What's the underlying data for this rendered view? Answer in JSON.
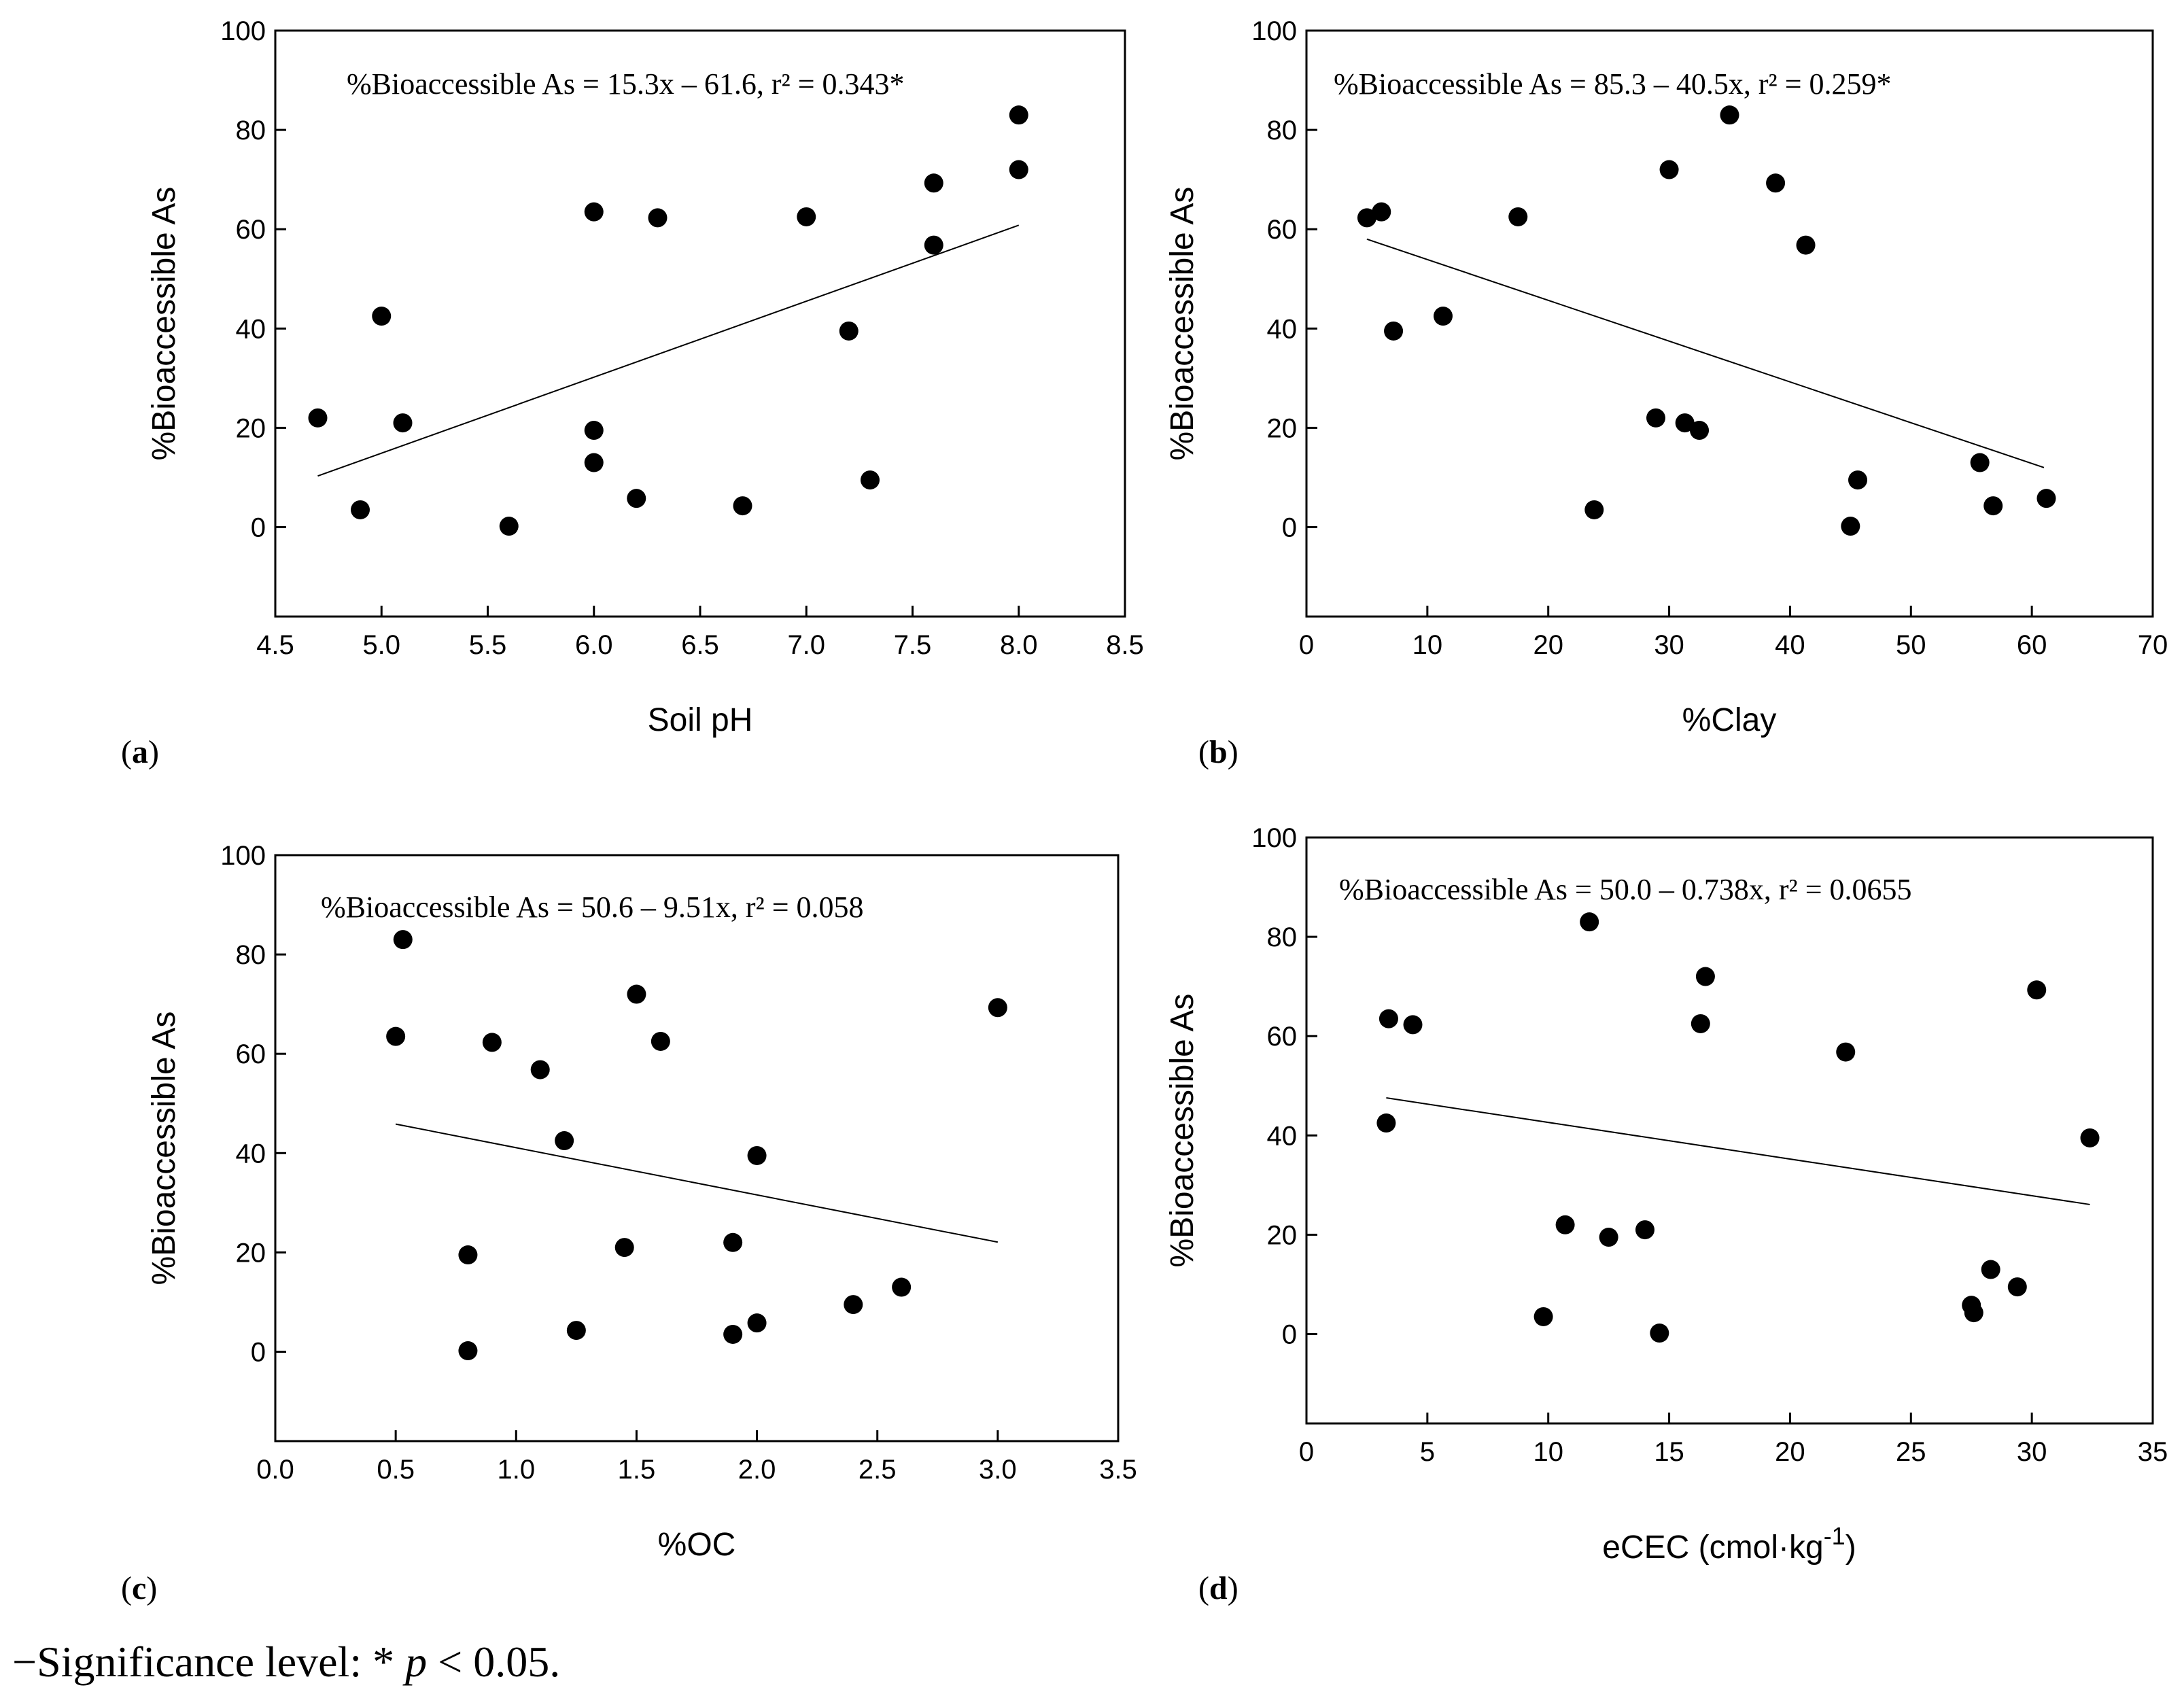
{
  "figure_note": {
    "prefix": "−Significance level: * ",
    "p_symbol": "p",
    "suffix": " < 0.05."
  },
  "chart_data": [
    {
      "type": "scatter",
      "id": "a",
      "panel_label": "(a)",
      "panel_letter": "a",
      "xlabel": "Soil pH",
      "ylabel": "%Bioaccessible As",
      "equation": "%Bioaccessible As = 15.3x – 61.6, r² = 0.343*",
      "xlim": [
        4.5,
        8.5
      ],
      "ylim": [
        -18,
        100
      ],
      "xticks": [
        4.5,
        5.0,
        5.5,
        6.0,
        6.5,
        7.0,
        7.5,
        8.0,
        8.5
      ],
      "xtick_labels": [
        "4.5",
        "5.0",
        "5.5",
        "6.0",
        "6.5",
        "7.0",
        "7.5",
        "8.0",
        "8.5"
      ],
      "yticks": [
        0,
        20,
        40,
        60,
        80,
        100
      ],
      "ytick_labels": [
        "0",
        "20",
        "40",
        "60",
        "80",
        "100"
      ],
      "fit_line": {
        "slope": 15.3,
        "intercept": -61.6,
        "x_range": [
          4.7,
          8.0
        ]
      },
      "points": [
        [
          4.7,
          22
        ],
        [
          4.9,
          3.5
        ],
        [
          5.0,
          42.5
        ],
        [
          5.1,
          21
        ],
        [
          5.6,
          0.2
        ],
        [
          6.0,
          63.5
        ],
        [
          6.0,
          19.5
        ],
        [
          6.0,
          13
        ],
        [
          6.2,
          5.8
        ],
        [
          6.3,
          62.3
        ],
        [
          6.7,
          4.3
        ],
        [
          7.0,
          62.5
        ],
        [
          7.2,
          39.5
        ],
        [
          7.3,
          9.5
        ],
        [
          7.6,
          69.3
        ],
        [
          7.6,
          56.8
        ],
        [
          8.0,
          83
        ],
        [
          8.0,
          72
        ]
      ]
    },
    {
      "type": "scatter",
      "id": "b",
      "panel_label": "(b)",
      "panel_letter": "b",
      "xlabel": "%Clay",
      "ylabel": "%Bioaccessible As",
      "equation": "%Bioaccessible As = 85.3 – 40.5x, r² = 0.259*",
      "xlim": [
        0,
        70
      ],
      "ylim": [
        -18,
        100
      ],
      "xticks": [
        0,
        10,
        20,
        30,
        40,
        50,
        60,
        70
      ],
      "xtick_labels": [
        "0",
        "10",
        "20",
        "30",
        "40",
        "50",
        "60",
        "70"
      ],
      "yticks": [
        0,
        20,
        40,
        60,
        80,
        100
      ],
      "ytick_labels": [
        "0",
        "20",
        "40",
        "60",
        "80",
        "100"
      ],
      "fit_line": {
        "endpoints": [
          [
            5,
            58
          ],
          [
            61,
            12
          ]
        ]
      },
      "points": [
        [
          5,
          62.3
        ],
        [
          6.2,
          63.5
        ],
        [
          7.2,
          39.5
        ],
        [
          11.3,
          42.5
        ],
        [
          17.5,
          62.5
        ],
        [
          23.8,
          3.5
        ],
        [
          28.9,
          22
        ],
        [
          30.0,
          72
        ],
        [
          31.3,
          21
        ],
        [
          32.5,
          19.5
        ],
        [
          35.0,
          83
        ],
        [
          38.8,
          69.3
        ],
        [
          41.3,
          56.8
        ],
        [
          45.0,
          0.2
        ],
        [
          45.6,
          9.5
        ],
        [
          55.7,
          13
        ],
        [
          56.8,
          4.3
        ],
        [
          61.2,
          5.8
        ]
      ]
    },
    {
      "type": "scatter",
      "id": "c",
      "panel_label": "(c)",
      "panel_letter": "c",
      "xlabel": "%OC",
      "ylabel": "%Bioaccessible As",
      "equation": "%Bioaccessible As = 50.6 – 9.51x, r² = 0.058",
      "xlim": [
        0,
        3.5
      ],
      "ylim": [
        -18,
        100
      ],
      "xticks": [
        0,
        0.5,
        1.0,
        1.5,
        2.0,
        2.5,
        3.0,
        3.5
      ],
      "xtick_labels": [
        "0.0",
        "0.5",
        "1.0",
        "1.5",
        "2.0",
        "2.5",
        "3.0",
        "3.5"
      ],
      "yticks": [
        0,
        20,
        40,
        60,
        80,
        100
      ],
      "ytick_labels": [
        "0",
        "20",
        "40",
        "60",
        "80",
        "100"
      ],
      "fit_line": {
        "slope": -9.51,
        "intercept": 50.6,
        "x_range": [
          0.5,
          3.0
        ]
      },
      "points": [
        [
          0.5,
          63.5
        ],
        [
          0.53,
          83
        ],
        [
          0.8,
          19.5
        ],
        [
          0.8,
          0.2
        ],
        [
          0.9,
          62.3
        ],
        [
          1.1,
          56.8
        ],
        [
          1.2,
          42.5
        ],
        [
          1.25,
          4.3
        ],
        [
          1.45,
          21
        ],
        [
          1.5,
          72
        ],
        [
          1.6,
          62.5
        ],
        [
          1.9,
          22
        ],
        [
          1.9,
          3.5
        ],
        [
          2.0,
          39.5
        ],
        [
          2.0,
          5.8
        ],
        [
          2.4,
          9.5
        ],
        [
          2.6,
          13
        ],
        [
          3.0,
          69.3
        ]
      ]
    },
    {
      "type": "scatter",
      "id": "d",
      "panel_label": "(d)",
      "panel_letter": "d",
      "xlabel": "eCEC (cmol·kg",
      "xlabel_sup": "-1",
      "xlabel_close": ")",
      "ylabel": "%Bioaccessible As",
      "equation": "%Bioaccessible As = 50.0 – 0.738x, r² = 0.0655",
      "xlim": [
        0,
        35
      ],
      "ylim": [
        -18,
        100
      ],
      "xticks": [
        0,
        5,
        10,
        15,
        20,
        25,
        30,
        35
      ],
      "xtick_labels": [
        "0",
        "5",
        "10",
        "15",
        "20",
        "25",
        "30",
        "35"
      ],
      "yticks": [
        0,
        20,
        40,
        60,
        80,
        100
      ],
      "ytick_labels": [
        "0",
        "20",
        "40",
        "60",
        "80",
        "100"
      ],
      "fit_line": {
        "slope": -0.738,
        "intercept": 50.0,
        "x_range": [
          3.3,
          32.4
        ]
      },
      "points": [
        [
          3.3,
          42.5
        ],
        [
          3.4,
          63.5
        ],
        [
          4.4,
          62.3
        ],
        [
          9.8,
          3.5
        ],
        [
          10.7,
          22
        ],
        [
          11.7,
          83
        ],
        [
          12.5,
          19.5
        ],
        [
          14.0,
          21
        ],
        [
          14.6,
          0.2
        ],
        [
          16.3,
          62.5
        ],
        [
          16.5,
          72
        ],
        [
          22.3,
          56.8
        ],
        [
          27.5,
          5.8
        ],
        [
          27.6,
          4.3
        ],
        [
          28.3,
          13
        ],
        [
          29.4,
          9.5
        ],
        [
          30.2,
          69.3
        ],
        [
          32.4,
          39.5
        ]
      ]
    }
  ]
}
